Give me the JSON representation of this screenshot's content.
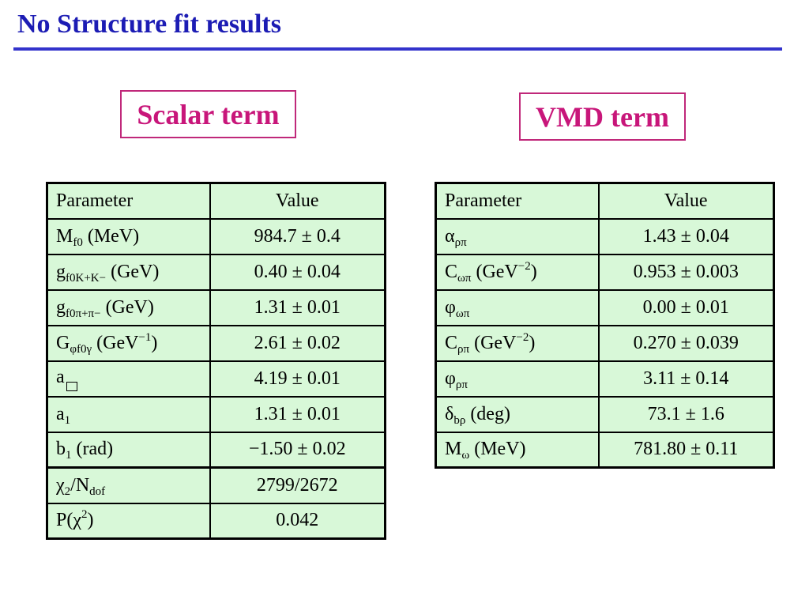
{
  "title": "No Structure fit results",
  "scalar_box": "Scalar term",
  "vmd_box": "VMD term",
  "scalar_table": {
    "header": {
      "param": "Parameter",
      "value": "Value"
    },
    "rows": [
      {
        "p_main": "M",
        "p_sub": "f0",
        "p_suffix": " (MeV)",
        "value": "984.7 ± 0.4"
      },
      {
        "p_main": "g",
        "p_sub": "f0K+K−",
        "p_suffix": " (GeV)",
        "value": "0.40 ± 0.04"
      },
      {
        "p_main": "g",
        "p_sub": "f0π+π−",
        "p_suffix": " (GeV)",
        "value": "1.31 ± 0.01"
      },
      {
        "p_main": "G",
        "p_sub": "φf0γ",
        "p_mid": " (GeV",
        "p_sup": "−1",
        "p_suffix": ")",
        "value": "2.61 ± 0.02"
      },
      {
        "p_main": "a",
        "p_sub": "",
        "value": "4.19 ± 0.01"
      },
      {
        "p_main": "a",
        "p_sub": "1",
        "p_suffix": "",
        "value": "1.31 ± 0.01"
      },
      {
        "p_main": "b",
        "p_sub": "1",
        "p_suffix": " (rad)",
        "value": "−1.50 ± 0.02"
      },
      {
        "p_main": "χ",
        "p_sub": "2",
        "p_mid": "/N",
        "p_sub2": "dof",
        "value": "2799/2672"
      },
      {
        "p_main": "P(χ",
        "p_sup": "2",
        "p_suffix": ")",
        "value": "0.042"
      }
    ]
  },
  "vmd_table": {
    "header": {
      "param": "Parameter",
      "value": "Value"
    },
    "rows": [
      {
        "p_main": "α",
        "p_sub": "ρπ",
        "value": "1.43 ± 0.04"
      },
      {
        "p_main": "C",
        "p_sub": "ωπ",
        "p_mid": " (GeV",
        "p_sup": "−2",
        "p_suffix": ")",
        "value": "0.953 ± 0.003"
      },
      {
        "p_main": "φ",
        "p_sub": "ωπ",
        "value": "0.00 ± 0.01"
      },
      {
        "p_main": "C",
        "p_sub": "ρπ",
        "p_mid": " (GeV",
        "p_sup": "−2",
        "p_suffix": ")",
        "value": "0.270 ± 0.039"
      },
      {
        "p_main": "φ",
        "p_sub": "ρπ",
        "value": "3.11 ± 0.14"
      },
      {
        "p_main": "δ",
        "p_sub": "bρ",
        "p_suffix": " (deg)",
        "value": "73.1 ± 1.6"
      },
      {
        "p_main": "M",
        "p_sub": "ω",
        "p_suffix": " (MeV)",
        "value": "781.80 ± 0.11"
      }
    ]
  }
}
